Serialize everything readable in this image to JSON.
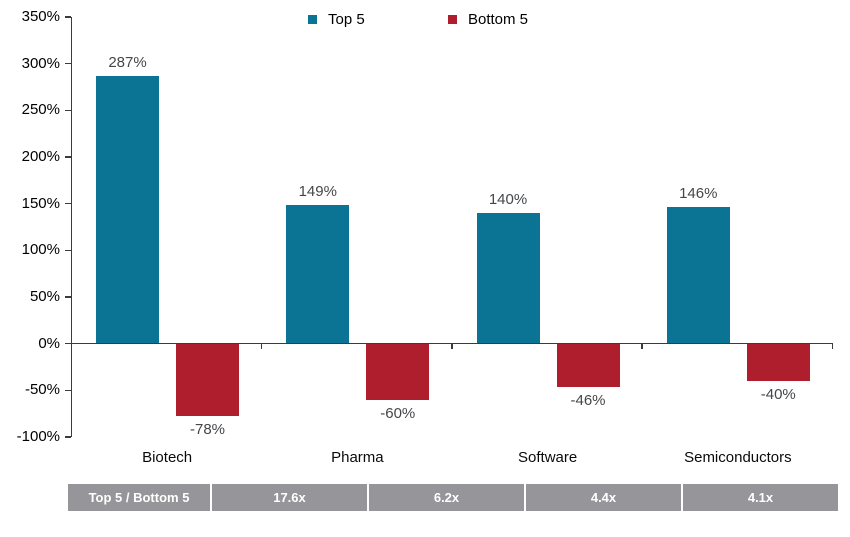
{
  "chart_data": {
    "type": "bar",
    "title": "",
    "categories": [
      "Biotech",
      "Pharma",
      "Software",
      "Semiconductors"
    ],
    "series": [
      {
        "name": "Top 5",
        "color": "#0B7394",
        "values": [
          287,
          149,
          140,
          146
        ]
      },
      {
        "name": "Bottom 5",
        "color": "#AF1E2D",
        "values": [
          -78,
          -60,
          -46,
          -40
        ]
      }
    ],
    "value_suffix": "%",
    "data_labels": [
      "287%",
      "149%",
      "140%",
      "146%",
      "-78%",
      "-60%",
      "-46%",
      "-40%"
    ],
    "xlabel": "",
    "ylabel": "",
    "ylim": [
      -100,
      350
    ],
    "ytick_step": 50,
    "ytick_labels": [
      "350%",
      "300%",
      "250%",
      "200%",
      "150%",
      "100%",
      "50%",
      "0%",
      "-50%",
      "-100%"
    ],
    "grid": false,
    "legend_position": "top"
  },
  "ratio_table": {
    "row_label": "Top 5 / Bottom 5",
    "values": [
      "17.6x",
      "6.2x",
      "4.4x",
      "4.1x"
    ]
  },
  "colors": {
    "top5": "#0B7394",
    "bottom5": "#AF1E2D",
    "table_bg": "#96969A",
    "table_text": "#FFFFFF",
    "axis": "#383B40",
    "value_label": "#44474A",
    "tick_label": "#000000"
  }
}
